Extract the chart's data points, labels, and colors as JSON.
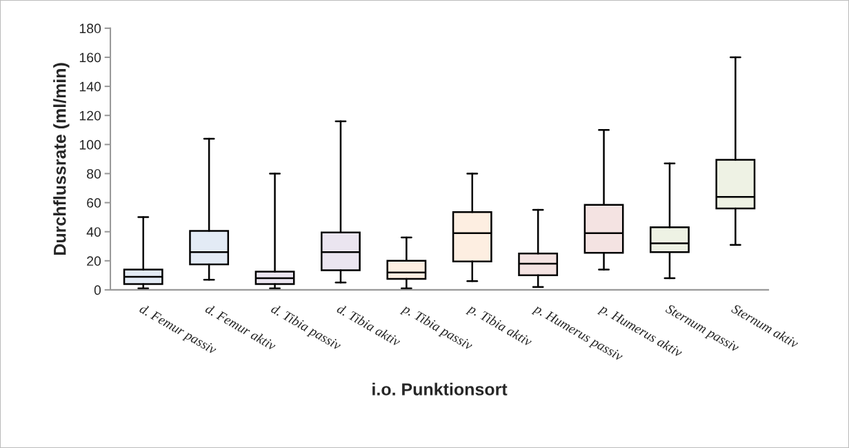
{
  "chart_data": {
    "type": "box",
    "ylabel": "Durchflussrate (ml/min)",
    "xlabel": "i.o. Punktionsort",
    "categories": [
      "d. Femur passiv",
      "d. Femur aktiv",
      "d. Tibia passiv",
      "d. Tibia aktiv",
      "p. Tibia passiv",
      "p. Tibia aktiv",
      "p. Humerus passiv",
      "p. Humerus aktiv",
      "Sternum passiv",
      "Sternum aktiv"
    ],
    "boxes": [
      {
        "low": 1,
        "q1": 4,
        "median": 9,
        "q3": 14,
        "high": 50
      },
      {
        "low": 7,
        "q1": 17.5,
        "median": 26,
        "q3": 40.5,
        "high": 104
      },
      {
        "low": 1,
        "q1": 4,
        "median": 8,
        "q3": 12.5,
        "high": 80
      },
      {
        "low": 5,
        "q1": 13.5,
        "median": 26,
        "q3": 39.5,
        "high": 116
      },
      {
        "low": 1,
        "q1": 7.5,
        "median": 12,
        "q3": 20,
        "high": 36
      },
      {
        "low": 6,
        "q1": 19.5,
        "median": 39,
        "q3": 53.5,
        "high": 80
      },
      {
        "low": 2,
        "q1": 10,
        "median": 18,
        "q3": 25,
        "high": 55
      },
      {
        "low": 14,
        "q1": 25.5,
        "median": 39,
        "q3": 58.5,
        "high": 110
      },
      {
        "low": 8,
        "q1": 26,
        "median": 32,
        "q3": 43,
        "high": 87
      },
      {
        "low": 31,
        "q1": 56,
        "median": 64,
        "q3": 89.5,
        "high": 160
      }
    ],
    "colors": [
      "#e3ebf5",
      "#e3ebf5",
      "#ebe5f0",
      "#ebe5f0",
      "#fdeee1",
      "#fdeee1",
      "#f4e3e2",
      "#f4e3e2",
      "#eef2e4",
      "#eef2e4"
    ],
    "ylim": [
      0,
      180
    ],
    "yticks": [
      0,
      20,
      40,
      60,
      80,
      100,
      120,
      140,
      160,
      180
    ],
    "grid": false,
    "legend": false
  }
}
